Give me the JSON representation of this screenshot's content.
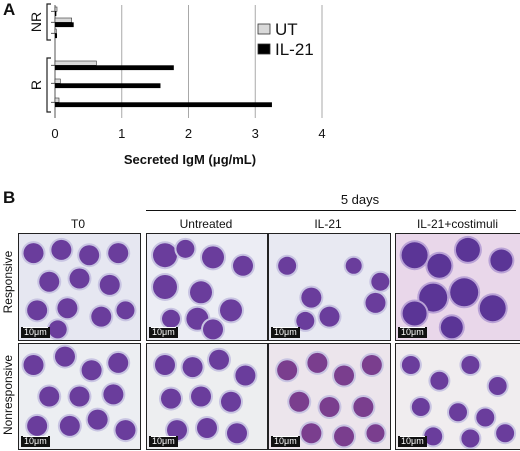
{
  "panel_a_label": "A",
  "panel_b_label": "B",
  "chart_data": {
    "type": "bar",
    "orientation": "horizontal",
    "xlabel": "Secreted IgM (μg/mL)",
    "xlim": [
      0,
      4
    ],
    "xticks": [
      "0",
      "1",
      "2",
      "3",
      "4"
    ],
    "grid": true,
    "legend_position": "top-right",
    "groups": [
      {
        "label": "NR",
        "rows": [
          {
            "UT": 0.03,
            "IL-21": 0.02
          },
          {
            "UT": 0.25,
            "IL-21": 0.28
          },
          {
            "UT": 0.02,
            "IL-21": 0.03
          }
        ]
      },
      {
        "label": "R",
        "rows": [
          {
            "UT": 0.62,
            "IL-21": 1.78
          },
          {
            "UT": 0.08,
            "IL-21": 1.58
          },
          {
            "UT": 0.06,
            "IL-21": 3.25
          }
        ]
      }
    ],
    "series": [
      {
        "name": "UT",
        "color": "#d9d9d9"
      },
      {
        "name": "IL-21",
        "color": "#000000"
      }
    ]
  },
  "panel_b": {
    "timepoint_label": "5 days",
    "columns": [
      "T0",
      "Untreated",
      "IL-21",
      "IL-21+costimuli"
    ],
    "rows": [
      "Responsive",
      "Nonresponsive"
    ],
    "scale_label": "10μm"
  }
}
